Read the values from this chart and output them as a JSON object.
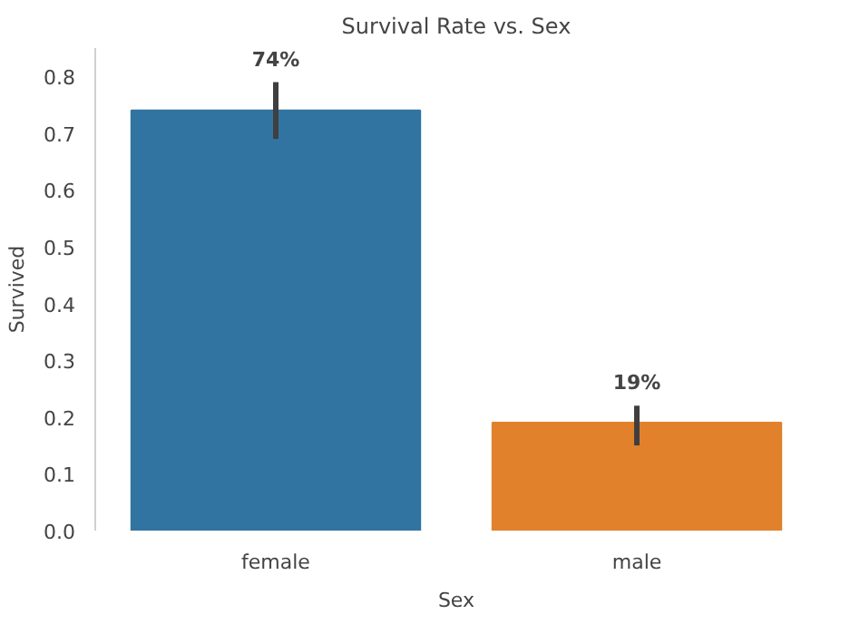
{
  "chart_data": {
    "type": "bar",
    "title": "Survival Rate vs. Sex",
    "xlabel": "Sex",
    "ylabel": "Survived",
    "categories": [
      "female",
      "male"
    ],
    "values": [
      0.74,
      0.19
    ],
    "colors": [
      "#3274a1",
      "#e1812c"
    ],
    "errors": [
      [
        0.69,
        0.79
      ],
      [
        0.15,
        0.22
      ]
    ],
    "value_labels": [
      "74%",
      "19%"
    ],
    "ylim": [
      0,
      0.85
    ],
    "yticks": [
      {
        "value": 0,
        "label": "0.0"
      },
      0.1,
      0.2,
      0.3,
      0.4,
      0.5,
      0.6,
      0.7,
      0.8
    ],
    "grid": false
  }
}
